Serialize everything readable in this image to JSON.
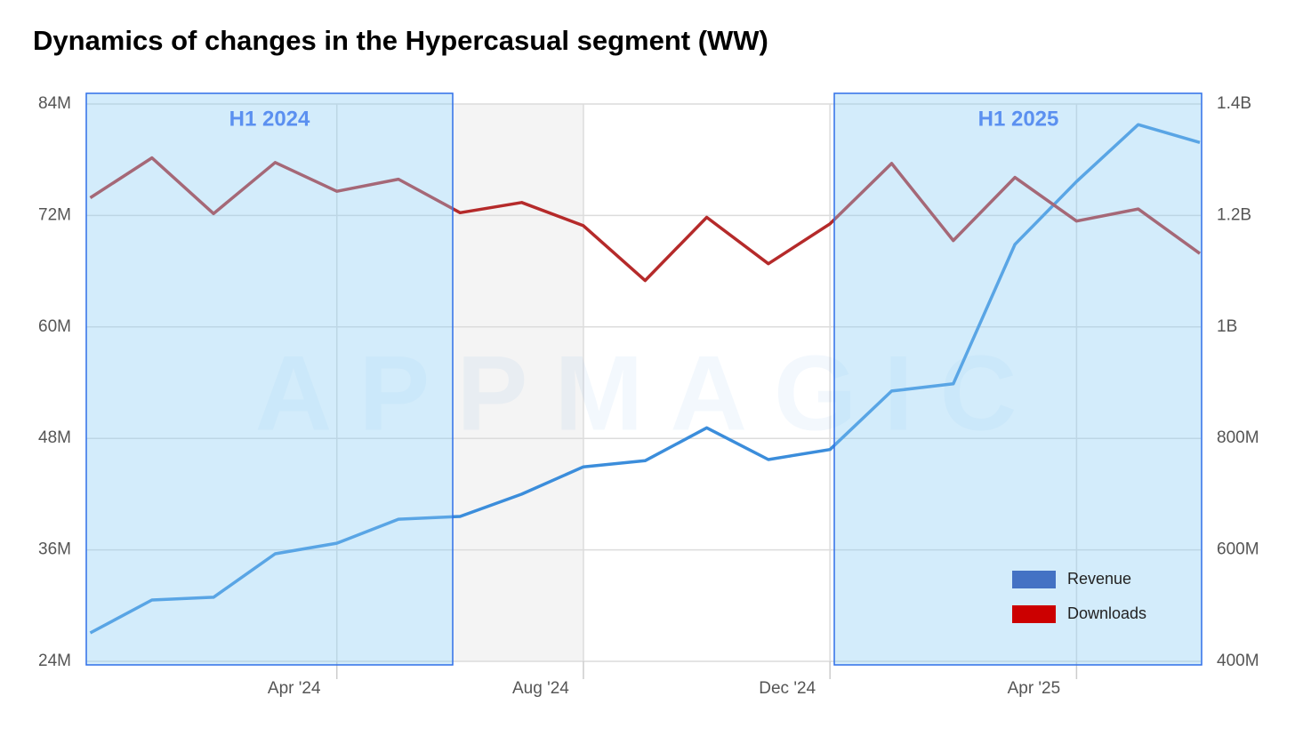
{
  "chart_data": {
    "type": "line",
    "title": "Dynamics of changes in the Hypercasual segment (WW)",
    "watermark": "APPMAGIC",
    "categories": [
      null,
      null,
      null,
      null,
      "Apr '24",
      null,
      null,
      null,
      "Aug '24",
      null,
      null,
      null,
      "Dec '24",
      null,
      null,
      null,
      "Apr '25",
      null,
      null
    ],
    "series": [
      {
        "name": "Revenue",
        "color": "#3b8ddb",
        "legend_color": "#4472c4",
        "axis": "y2",
        "values": [
          451000000,
          510000000,
          515000000,
          593000000,
          612000000,
          655000000,
          660000000,
          700000000,
          749000000,
          760000000,
          819000000,
          762000000,
          780000000,
          885000000,
          898000000,
          1148000000,
          1261000000,
          1363000000,
          1331000000
        ]
      },
      {
        "name": "Downloads",
        "color": "#b52a2a",
        "legend_color": "#cc0000",
        "values": [
          73900000,
          78200000,
          72200000,
          77700000,
          74600000,
          75900000,
          72300000,
          73400000,
          70900000,
          65000000,
          71800000,
          66800000,
          71100000,
          77600000,
          69300000,
          76100000,
          71400000,
          72700000,
          67900000
        ]
      }
    ],
    "ylim": [
      24000000,
      84000000
    ],
    "yticks": [
      {
        "value": 24000000,
        "label": "24M"
      },
      {
        "value": 36000000,
        "label": "36M"
      },
      {
        "value": 48000000,
        "label": "48M"
      },
      {
        "value": 60000000,
        "label": "60M"
      },
      {
        "value": 72000000,
        "label": "72M"
      },
      {
        "value": 84000000,
        "label": "84M"
      }
    ],
    "y2lim": [
      400000000,
      1400000000
    ],
    "y2ticks": [
      {
        "value": 400000000,
        "label": "400M"
      },
      {
        "value": 600000000,
        "label": "600M"
      },
      {
        "value": 800000000,
        "label": "800M"
      },
      {
        "value": 1000000000,
        "label": "1B"
      },
      {
        "value": 1200000000,
        "label": "1.2B"
      },
      {
        "value": 1400000000,
        "label": "1.4B"
      }
    ],
    "annotations": [
      {
        "label": "H1 2024"
      },
      {
        "label": "H1 2025"
      }
    ],
    "grid": true,
    "legend": "lower right"
  }
}
